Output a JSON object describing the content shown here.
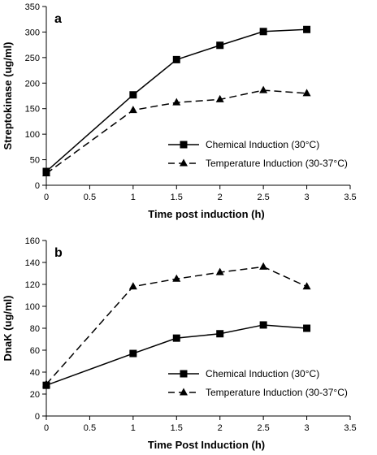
{
  "chart_data": [
    {
      "type": "line",
      "panel_label": "a",
      "xlabel": "Time post induction (h)",
      "ylabel": "Streptokinase (ug/ml)",
      "xlim": [
        0,
        3.5
      ],
      "ylim": [
        0,
        350
      ],
      "xticks": [
        0,
        0.5,
        1,
        1.5,
        2,
        2.5,
        3,
        3.5
      ],
      "yticks": [
        0,
        50,
        100,
        150,
        200,
        250,
        300,
        350
      ],
      "xtick_labels": [
        "0",
        "0.5",
        "1",
        "1.5",
        "2",
        "2.5",
        "3",
        "3.5"
      ],
      "ytick_labels": [
        "0",
        "50",
        "100",
        "150",
        "200",
        "250",
        "300",
        "350"
      ],
      "grid": false,
      "legend_position": "lower-right",
      "series": [
        {
          "name": "Chemical Induction (30°C)",
          "marker": "square",
          "line_style": "solid",
          "color": "#000000",
          "x": [
            0,
            1,
            1.5,
            2,
            2.5,
            3
          ],
          "y": [
            27,
            177,
            246,
            274,
            301,
            305
          ]
        },
        {
          "name": "Temperature Induction (30-37°C)",
          "marker": "triangle",
          "line_style": "dashed",
          "color": "#000000",
          "x": [
            0,
            1,
            1.5,
            2,
            2.5,
            3
          ],
          "y": [
            23,
            147,
            162,
            168,
            186,
            180
          ]
        }
      ]
    },
    {
      "type": "line",
      "panel_label": "b",
      "xlabel": "Time Post Induction (h)",
      "ylabel": "DnaK (ug/ml)",
      "xlim": [
        0,
        3.5
      ],
      "ylim": [
        0,
        160
      ],
      "xticks": [
        0,
        0.5,
        1,
        1.5,
        2,
        2.5,
        3,
        3.5
      ],
      "yticks": [
        0,
        20,
        40,
        60,
        80,
        100,
        120,
        140,
        160
      ],
      "xtick_labels": [
        "0",
        "0.5",
        "1",
        "1.5",
        "2",
        "2.5",
        "3",
        "3.5"
      ],
      "ytick_labels": [
        "0",
        "20",
        "40",
        "60",
        "80",
        "100",
        "120",
        "140",
        "160"
      ],
      "grid": false,
      "legend_position": "lower-right",
      "series": [
        {
          "name": "Chemical Induction (30°C)",
          "marker": "square",
          "line_style": "solid",
          "color": "#000000",
          "x": [
            0,
            1,
            1.5,
            2,
            2.5,
            3
          ],
          "y": [
            28,
            57,
            71,
            75,
            83,
            80
          ]
        },
        {
          "name": "Temperature Induction (30-37°C)",
          "marker": "triangle",
          "line_style": "dashed",
          "color": "#000000",
          "x": [
            0,
            1,
            1.5,
            2,
            2.5,
            3
          ],
          "y": [
            29,
            118,
            125,
            131,
            136,
            118
          ]
        }
      ]
    }
  ]
}
